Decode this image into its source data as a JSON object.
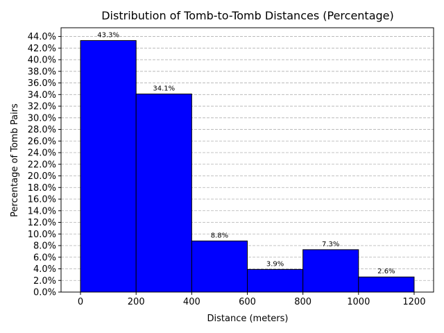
{
  "chart_data": {
    "type": "bar",
    "title": "Distribution of Tomb-to-Tomb Distances (Percentage)",
    "xlabel": "Distance (meters)",
    "ylabel": "Percentage of Tomb Pairs",
    "bins": [
      {
        "start": 0,
        "end": 200,
        "value": 43.3,
        "label": "43.3%"
      },
      {
        "start": 200,
        "end": 400,
        "value": 34.1,
        "label": "34.1%"
      },
      {
        "start": 400,
        "end": 600,
        "value": 8.8,
        "label": "8.8%"
      },
      {
        "start": 600,
        "end": 800,
        "value": 3.9,
        "label": "3.9%"
      },
      {
        "start": 800,
        "end": 1000,
        "value": 7.3,
        "label": "7.3%"
      },
      {
        "start": 1000,
        "end": 1200,
        "value": 2.6,
        "label": "2.6%"
      }
    ],
    "xlim": [
      -70,
      1270
    ],
    "ylim": [
      0,
      45.5
    ],
    "x_ticks": [
      0,
      200,
      400,
      600,
      800,
      1000,
      1200
    ],
    "y_ticks": [
      0,
      2,
      4,
      6,
      8,
      10,
      12,
      14,
      16,
      18,
      20,
      22,
      24,
      26,
      28,
      30,
      32,
      34,
      36,
      38,
      40,
      42,
      44
    ],
    "y_tick_format": "percent_one_decimal",
    "grid": "y-dashed",
    "bar_color": "#0000ff",
    "bar_edge_color": "#000000",
    "grid_color": "#b0b0b0"
  }
}
